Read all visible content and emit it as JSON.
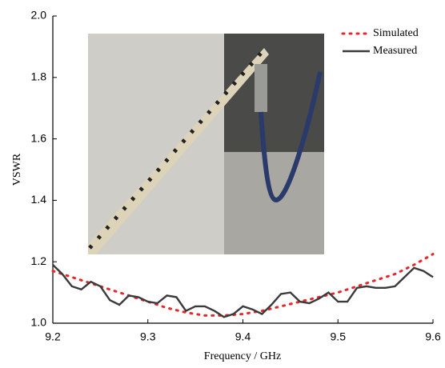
{
  "chart_data": {
    "type": "line",
    "xlabel": "Frequency / GHz",
    "ylabel": "VSWR",
    "xlim": [
      9.2,
      9.6
    ],
    "xticks": [
      9.2,
      9.3,
      9.4,
      9.5,
      9.6
    ],
    "ylim": [
      1.0,
      2.0
    ],
    "yticks": [
      {
        "value": 1.0,
        "label": "1.0"
      },
      1.2,
      1.4,
      1.6,
      1.8,
      {
        "value": 2.0,
        "label": "2.0"
      }
    ],
    "grid": false,
    "legend": "upper right",
    "series": [
      {
        "name": "Simulated",
        "color": "#e8262a",
        "style": "dotted",
        "x": [
          9.2,
          9.22,
          9.24,
          9.26,
          9.28,
          9.3,
          9.32,
          9.34,
          9.36,
          9.38,
          9.4,
          9.42,
          9.44,
          9.46,
          9.48,
          9.5,
          9.52,
          9.54,
          9.56,
          9.58,
          9.6
        ],
        "values": [
          1.17,
          1.15,
          1.13,
          1.11,
          1.09,
          1.07,
          1.05,
          1.035,
          1.025,
          1.025,
          1.03,
          1.04,
          1.055,
          1.07,
          1.085,
          1.1,
          1.12,
          1.14,
          1.16,
          1.19,
          1.225
        ]
      },
      {
        "name": "Measured",
        "color": "#3a3a3a",
        "style": "solid",
        "x": [
          9.2,
          9.21,
          9.22,
          9.23,
          9.24,
          9.25,
          9.26,
          9.27,
          9.28,
          9.29,
          9.3,
          9.31,
          9.32,
          9.33,
          9.34,
          9.35,
          9.36,
          9.37,
          9.38,
          9.39,
          9.4,
          9.41,
          9.42,
          9.43,
          9.44,
          9.45,
          9.46,
          9.47,
          9.48,
          9.49,
          9.5,
          9.51,
          9.52,
          9.53,
          9.54,
          9.55,
          9.56,
          9.57,
          9.58,
          9.59,
          9.6
        ],
        "values": [
          1.19,
          1.16,
          1.12,
          1.11,
          1.135,
          1.12,
          1.075,
          1.06,
          1.09,
          1.085,
          1.07,
          1.065,
          1.09,
          1.085,
          1.04,
          1.055,
          1.055,
          1.04,
          1.02,
          1.03,
          1.055,
          1.045,
          1.03,
          1.06,
          1.095,
          1.1,
          1.07,
          1.065,
          1.08,
          1.1,
          1.07,
          1.07,
          1.115,
          1.12,
          1.115,
          1.115,
          1.12,
          1.15,
          1.18,
          1.17,
          1.15
        ]
      }
    ]
  }
}
